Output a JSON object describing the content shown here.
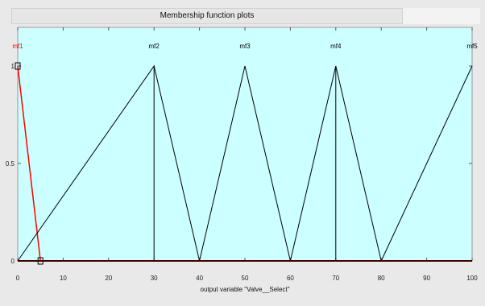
{
  "window": {
    "title": "Membership function plots"
  },
  "plot": {
    "xlabel": "output variable \"Valve__Select\"",
    "xlim": [
      0,
      100
    ],
    "ylim": [
      0,
      1
    ],
    "x_ticks": [
      "0",
      "10",
      "20",
      "30",
      "40",
      "50",
      "60",
      "70",
      "80",
      "90",
      "100"
    ],
    "y_ticks": [
      "0",
      "0.5",
      "1"
    ],
    "background": "#ccffff",
    "line_color": "#000000",
    "selected_color": "#ff0000",
    "selected_mf": "mf1"
  },
  "membership_functions": [
    {
      "name": "mf1",
      "points": [
        [
          0,
          1
        ],
        [
          5,
          0
        ]
      ],
      "selected": true
    },
    {
      "name": "mf2",
      "points": [
        [
          0,
          0
        ],
        [
          30,
          1
        ],
        [
          30,
          0
        ]
      ],
      "selected": false
    },
    {
      "name": "mf3",
      "points": [
        [
          40,
          0
        ],
        [
          50,
          1
        ],
        [
          60,
          0
        ]
      ],
      "selected": false
    },
    {
      "name": "mf4",
      "points": [
        [
          60,
          0
        ],
        [
          70,
          1
        ],
        [
          70,
          0
        ]
      ],
      "selected": false
    },
    {
      "name": "mf5",
      "points": [
        [
          80,
          0
        ],
        [
          100,
          1
        ]
      ],
      "selected": false
    }
  ],
  "extra_lines": [
    {
      "points": [
        [
          30,
          1
        ],
        [
          40,
          0
        ]
      ]
    },
    {
      "points": [
        [
          70,
          1
        ],
        [
          80,
          0
        ]
      ]
    }
  ]
}
